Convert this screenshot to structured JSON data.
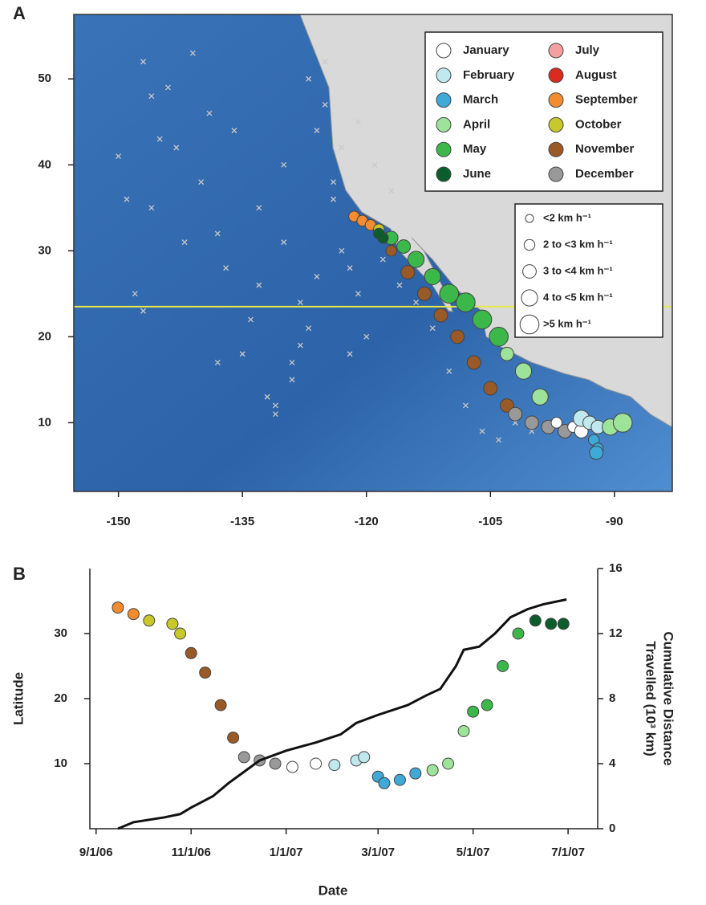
{
  "chart_data": [
    {
      "type": "map",
      "panel_label": "A",
      "xlim": [
        -155.4,
        -83
      ],
      "ylim": [
        2,
        57.5
      ],
      "xticks": [
        -150,
        -135,
        -120,
        -105,
        -90
      ],
      "yticks": [
        10,
        20,
        30,
        40,
        50
      ],
      "reference_lat": 23.5,
      "reference_color": "#e6e84a",
      "locations": {
        "color": "#c9c9c9",
        "lon": [
          -150,
          -149,
          -147,
          -146,
          -145,
          -144,
          -143,
          -141,
          -140,
          -139,
          -138,
          -137,
          -136,
          -135,
          -134,
          -133,
          -132,
          -131,
          -130,
          -129,
          -128,
          -127,
          -126,
          -125,
          -124,
          -123,
          -122,
          -121,
          -146,
          -142,
          -138,
          -133,
          -130,
          -128,
          -126,
          -124,
          -122,
          -120,
          -118,
          -116,
          -114,
          -112,
          -110,
          -108,
          -106,
          -104,
          -102,
          -100,
          -125,
          -127,
          -123,
          -121,
          -119,
          -117,
          -131,
          -129,
          -148,
          -147
        ],
        "lat": [
          41,
          36,
          52,
          48,
          43,
          49,
          42,
          53,
          38,
          46,
          32,
          28,
          44,
          18,
          22,
          26,
          13,
          12,
          31,
          15,
          24,
          21,
          44,
          47,
          36,
          30,
          28,
          25,
          35,
          31,
          17,
          35,
          40,
          19,
          27,
          38,
          18,
          20,
          29,
          26,
          24,
          21,
          16,
          12,
          9,
          8,
          10,
          9,
          52,
          50,
          42,
          45,
          40,
          37,
          11,
          17,
          25,
          23
        ]
      },
      "series": [
        {
          "name": "January",
          "color": "#ffffff",
          "lon": [
            -95,
            -94,
            -97
          ],
          "lat": [
            9.5,
            9,
            10
          ],
          "speed_class": [
            1,
            2,
            1
          ]
        },
        {
          "name": "February",
          "color": "#bfe9ef",
          "lon": [
            -94,
            -93,
            -92
          ],
          "lat": [
            10.5,
            10,
            9.5
          ],
          "speed_class": [
            3,
            2,
            2
          ]
        },
        {
          "name": "March",
          "color": "#3fa9d8",
          "lon": [
            -92.5,
            -92,
            -92.2
          ],
          "lat": [
            8,
            7,
            6.5
          ],
          "speed_class": [
            1,
            1,
            2
          ]
        },
        {
          "name": "April",
          "color": "#9ee39a",
          "lon": [
            -90.5,
            -89,
            -99,
            -101,
            -103
          ],
          "lat": [
            9.5,
            10,
            13,
            16,
            18
          ],
          "speed_class": [
            3,
            4,
            3,
            3,
            2
          ]
        },
        {
          "name": "May",
          "color": "#3cb84a",
          "lon": [
            -104,
            -106,
            -108,
            -110,
            -112,
            -114,
            -115.5,
            -117
          ],
          "lat": [
            20,
            22,
            24,
            25,
            27,
            29,
            30.5,
            31.5
          ],
          "speed_class": [
            4,
            4,
            4,
            4,
            3,
            3,
            2,
            2
          ]
        },
        {
          "name": "June",
          "color": "#0b5e2c",
          "lon": [
            -118,
            -118.5
          ],
          "lat": [
            31.5,
            32
          ],
          "speed_class": [
            1,
            1
          ]
        },
        {
          "name": "July",
          "color": "#f4a0a0",
          "lon": [],
          "lat": [],
          "speed_class": []
        },
        {
          "name": "August",
          "color": "#d92b1f",
          "lon": [],
          "lat": [],
          "speed_class": []
        },
        {
          "name": "September",
          "color": "#f28c30",
          "lon": [
            -121.5,
            -120.5,
            -119.5
          ],
          "lat": [
            34,
            33.5,
            33
          ],
          "speed_class": [
            1,
            1,
            1
          ]
        },
        {
          "name": "October",
          "color": "#c8c82a",
          "lon": [
            -118.5,
            -117.5
          ],
          "lat": [
            32.5,
            31.5
          ],
          "speed_class": [
            1,
            1
          ]
        },
        {
          "name": "November",
          "color": "#9a5a28",
          "lon": [
            -117,
            -115,
            -113,
            -111,
            -109,
            -107,
            -105,
            -103
          ],
          "lat": [
            30,
            27.5,
            25,
            22.5,
            20,
            17,
            14,
            12
          ],
          "speed_class": [
            1,
            2,
            2,
            2,
            2,
            2,
            2,
            2
          ]
        },
        {
          "name": "December",
          "color": "#999999",
          "lon": [
            -102,
            -100,
            -98,
            -96
          ],
          "lat": [
            11,
            10,
            9.5,
            9
          ],
          "speed_class": [
            2,
            2,
            2,
            2
          ]
        }
      ],
      "speed_classes": [
        "<2 km h⁻¹",
        "2 to <3 km h⁻¹",
        "3 to <4 km h⁻¹",
        "4 to <5 km h⁻¹",
        ">5 km h⁻¹"
      ]
    },
    {
      "type": "line",
      "panel_label": "B",
      "x_label": "Date",
      "y_label": "Latitude",
      "y2_label": [
        "Cumulative Distance",
        "Travelled (10³ km)"
      ],
      "xlim": [
        "2006-08-28",
        "2007-07-20"
      ],
      "xticks": [
        {
          "value": "2006-09-01",
          "label": "9/1/06"
        },
        {
          "value": "2006-11-01",
          "label": "11/1/06"
        },
        {
          "value": "2007-01-01",
          "label": "1/1/07"
        },
        {
          "value": "2007-03-01",
          "label": "3/1/07"
        },
        {
          "value": "2007-05-01",
          "label": "5/1/07"
        },
        {
          "value": "2007-07-01",
          "label": "7/1/07"
        }
      ],
      "ylim": [
        0,
        40
      ],
      "yticks": [
        10,
        20,
        30
      ],
      "y2lim": [
        0,
        16
      ],
      "y2ticks": [
        0,
        4,
        8,
        12,
        16
      ],
      "series": [
        {
          "x": [
            "2006-09-15",
            "2006-09-25",
            "2006-10-05",
            "2006-10-20",
            "2006-10-25",
            "2006-11-01",
            "2006-11-10",
            "2006-11-20",
            "2006-11-28",
            "2006-12-05",
            "2006-12-15",
            "2006-12-25",
            "2007-01-05",
            "2007-01-20",
            "2007-02-01",
            "2007-02-15",
            "2007-02-20",
            "2007-03-01",
            "2007-03-05",
            "2007-03-15",
            "2007-03-25",
            "2007-04-05",
            "2007-04-15",
            "2007-04-25",
            "2007-05-01",
            "2007-05-10",
            "2007-05-20",
            "2007-05-30",
            "2007-06-10",
            "2007-06-20",
            "2007-06-28"
          ],
          "values": [
            34,
            33,
            32,
            31.5,
            30,
            27,
            24,
            19,
            14,
            11,
            10.5,
            10,
            9.5,
            10,
            9.8,
            10.5,
            11,
            8,
            7,
            7.5,
            8.5,
            9,
            10,
            15,
            18,
            19,
            25,
            30,
            32,
            31.5,
            31.5
          ]
        },
        {
          "axis": "y2",
          "color": "#111111",
          "x": [
            "2006-09-15",
            "2006-09-25",
            "2006-10-15",
            "2006-10-25",
            "2006-11-01",
            "2006-11-15",
            "2006-11-25",
            "2006-12-05",
            "2006-12-15",
            "2007-01-01",
            "2007-01-20",
            "2007-02-05",
            "2007-02-15",
            "2007-03-01",
            "2007-03-20",
            "2007-04-01",
            "2007-04-10",
            "2007-04-20",
            "2007-04-25",
            "2007-05-05",
            "2007-05-15",
            "2007-05-25",
            "2007-06-05",
            "2007-06-15",
            "2007-06-30"
          ],
          "values": [
            0,
            0.4,
            0.7,
            0.9,
            1.3,
            2,
            2.8,
            3.5,
            4.2,
            4.8,
            5.3,
            5.8,
            6.5,
            7,
            7.6,
            8.2,
            8.6,
            10,
            11,
            11.2,
            12,
            13,
            13.5,
            13.8,
            14.1
          ]
        }
      ]
    }
  ]
}
